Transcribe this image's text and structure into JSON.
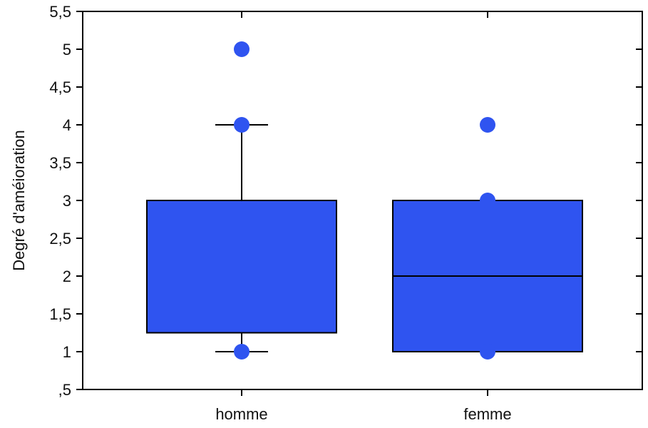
{
  "chart_data": {
    "type": "boxplot",
    "title": "",
    "xlabel": "",
    "ylabel": "Degré d'améioration",
    "ylim": [
      0.5,
      5.5
    ],
    "y_ticks": [
      {
        "value": 0.5,
        "label": ",5"
      },
      {
        "value": 1,
        "label": "1"
      },
      {
        "value": 1.5,
        "label": "1,5"
      },
      {
        "value": 2,
        "label": "2"
      },
      {
        "value": 2.5,
        "label": "2,5"
      },
      {
        "value": 3,
        "label": "3"
      },
      {
        "value": 3.5,
        "label": "3,5"
      },
      {
        "value": 4,
        "label": "4"
      },
      {
        "value": 4.5,
        "label": "4,5"
      },
      {
        "value": 5,
        "label": "5"
      },
      {
        "value": 5.5,
        "label": "5,5"
      }
    ],
    "categories": [
      "homme",
      "femme"
    ],
    "boxes": [
      {
        "category": "homme",
        "whisker_low": 1,
        "q1": 1.25,
        "median": null,
        "q3": 3,
        "whisker_high": 4,
        "points": [
          5,
          4,
          1
        ]
      },
      {
        "category": "femme",
        "whisker_low": null,
        "q1": 1,
        "median": 2,
        "q3": 3,
        "whisker_high": null,
        "points": [
          4,
          3,
          1
        ]
      }
    ],
    "grid": false,
    "colors": {
      "box_fill": "#2f54f0",
      "box_stroke": "#000000",
      "point": "#2f54f0",
      "axis": "#000000"
    }
  }
}
